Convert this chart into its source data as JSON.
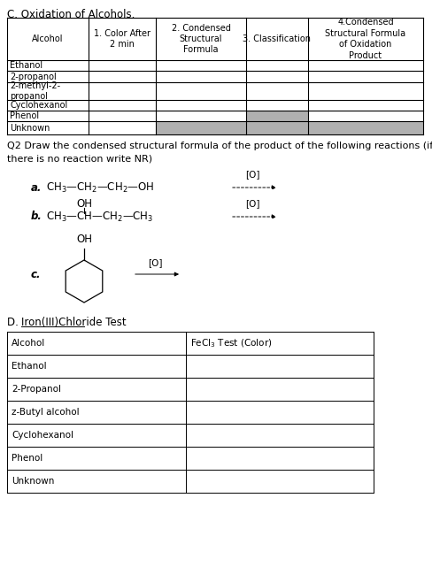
{
  "title_c": "C. Oxidation of Alcohols.",
  "table1_headers": [
    "Alcohol",
    "1. Color After\n2 min",
    "2. Condensed\nStructural\nFormula",
    "3. Classification",
    "4.Condensed\nStructural Formula\nof Oxidation\nProduct"
  ],
  "table1_rows": [
    "Ethanol",
    "2-propanol",
    "2-methyl-2-\npropanol",
    "Cyclohexanol",
    "Phenol",
    "Unknown"
  ],
  "q2_text1": "Q2 Draw the condensed structural formula of the product of the following reactions (if",
  "q2_text2": "there is no reaction write NR)",
  "section_d": "D. ",
  "section_d_iron": "Iron(III)Chloride Test",
  "table2_headers": [
    "Alcohol",
    "FeCl₃ Test (Color)"
  ],
  "table2_rows": [
    "Ethanol",
    "2-Propanol",
    "z-Butyl alcohol",
    "Cyclohexanol",
    "Phenol",
    "Unknown"
  ],
  "bg_color": "#ffffff",
  "gray_color": "#b0b0b0",
  "border_color": "#000000",
  "text_color": "#000000",
  "fs": 7.5,
  "fs_title": 8.5
}
